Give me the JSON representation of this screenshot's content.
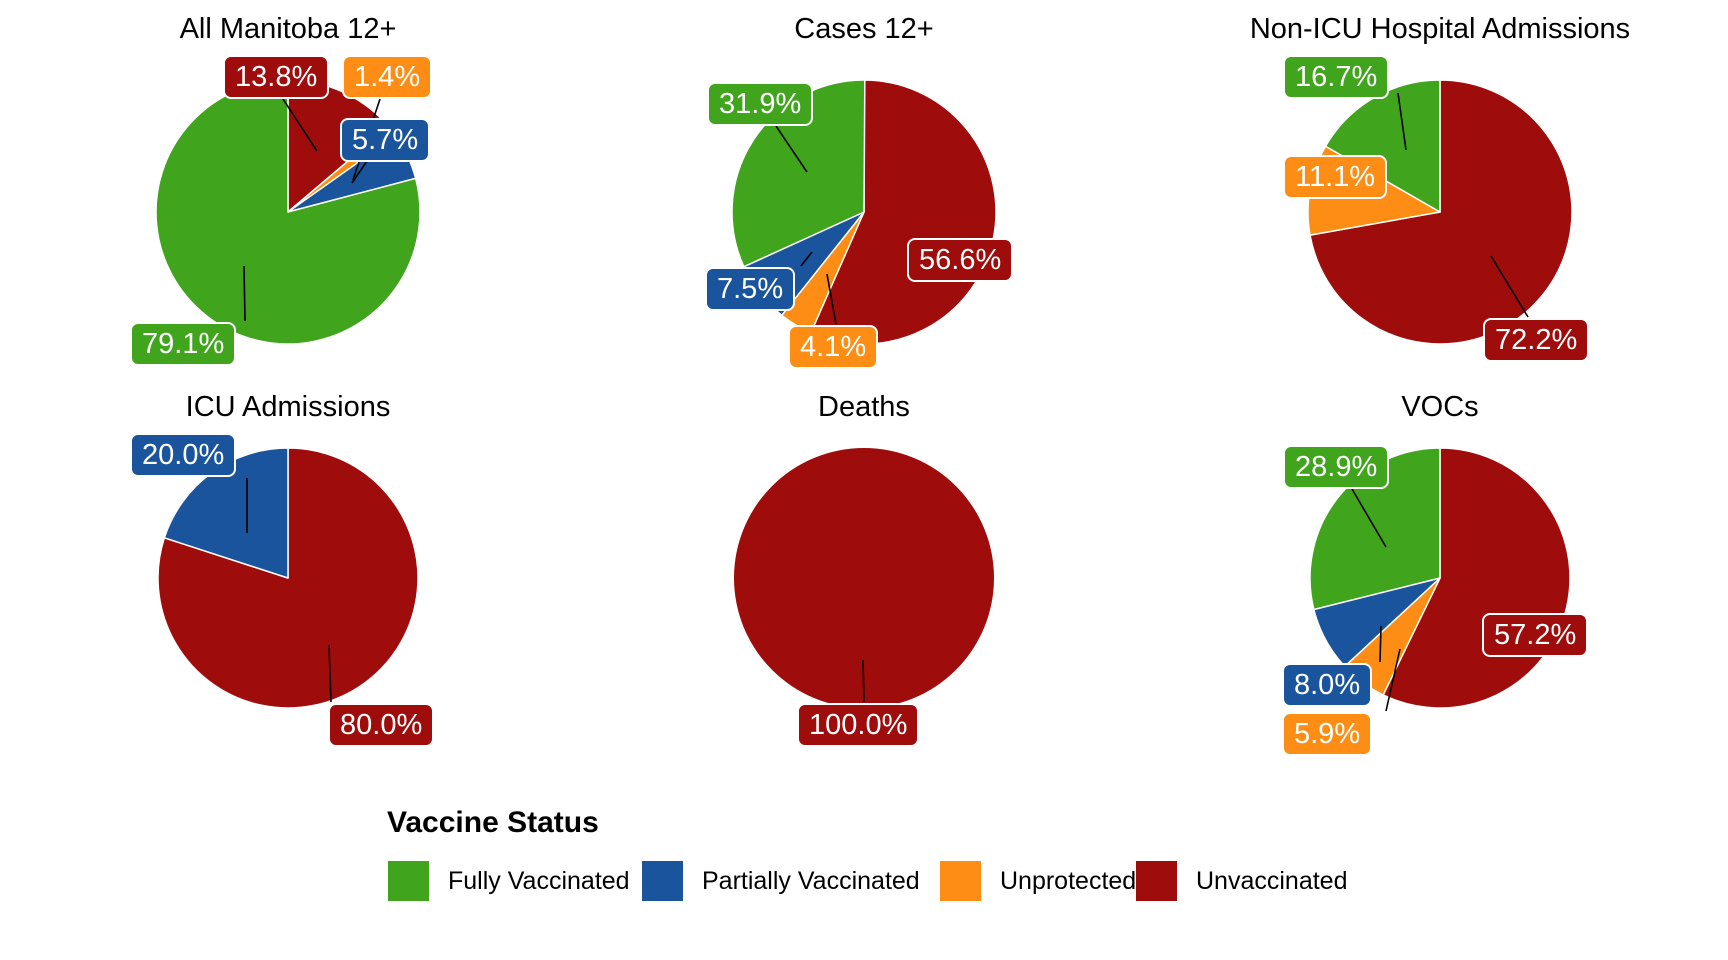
{
  "page": {
    "background": "#ffffff"
  },
  "legend": {
    "title": "Vaccine Status",
    "items": [
      {
        "label": "Fully Vaccinated",
        "color": "#41A41D"
      },
      {
        "label": "Partially Vaccinated",
        "color": "#1A549C"
      },
      {
        "label": "Unprotected",
        "color": "#FD8D14"
      },
      {
        "label": "Unvaccinated",
        "color": "#9E0C0C"
      }
    ]
  },
  "label_format": {
    "decimals": 1,
    "suffix": "%"
  },
  "chart_data": [
    {
      "type": "pie",
      "title": "All Manitoba 12+",
      "clockwise_from_top": true,
      "slices": [
        {
          "category": "Unvaccinated",
          "value": 13.8
        },
        {
          "category": "Unprotected",
          "value": 1.4
        },
        {
          "category": "Partially Vaccinated",
          "value": 5.7
        },
        {
          "category": "Fully Vaccinated",
          "value": 79.1
        }
      ]
    },
    {
      "type": "pie",
      "title": "Cases 12+",
      "clockwise_from_top": true,
      "slices": [
        {
          "category": "Unvaccinated",
          "value": 56.6
        },
        {
          "category": "Unprotected",
          "value": 4.1
        },
        {
          "category": "Partially Vaccinated",
          "value": 7.5
        },
        {
          "category": "Fully Vaccinated",
          "value": 31.9
        }
      ]
    },
    {
      "type": "pie",
      "title": "Non-ICU Hospital Admissions",
      "clockwise_from_top": true,
      "slices": [
        {
          "category": "Unvaccinated",
          "value": 72.2
        },
        {
          "category": "Unprotected",
          "value": 11.1
        },
        {
          "category": "Fully Vaccinated",
          "value": 16.7
        }
      ]
    },
    {
      "type": "pie",
      "title": "ICU Admissions",
      "clockwise_from_top": true,
      "slices": [
        {
          "category": "Unvaccinated",
          "value": 80.0
        },
        {
          "category": "Partially Vaccinated",
          "value": 20.0
        }
      ]
    },
    {
      "type": "pie",
      "title": "Deaths",
      "clockwise_from_top": true,
      "slices": [
        {
          "category": "Unvaccinated",
          "value": 100.0
        }
      ]
    },
    {
      "type": "pie",
      "title": "VOCs",
      "clockwise_from_top": true,
      "slices": [
        {
          "category": "Unvaccinated",
          "value": 57.2
        },
        {
          "category": "Unprotected",
          "value": 5.9
        },
        {
          "category": "Partially Vaccinated",
          "value": 8.0
        },
        {
          "category": "Fully Vaccinated",
          "value": 28.9
        }
      ]
    }
  ]
}
